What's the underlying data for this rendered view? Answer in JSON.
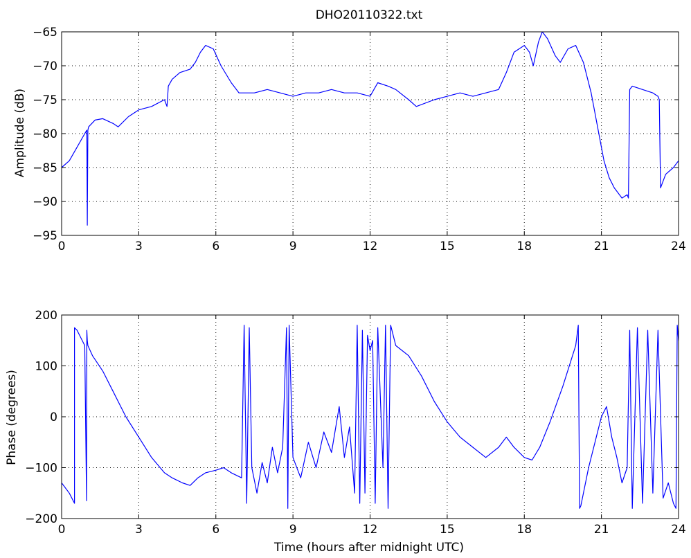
{
  "chart_data": [
    {
      "type": "line",
      "title": "DHO20110322.txt",
      "xlabel": "",
      "ylabel": "Amplitude (dB)",
      "xlim": [
        0,
        24
      ],
      "ylim": [
        -95,
        -65
      ],
      "xticks": [
        0,
        3,
        6,
        9,
        12,
        15,
        18,
        21,
        24
      ],
      "yticks": [
        -95,
        -90,
        -85,
        -80,
        -75,
        -70,
        -65
      ],
      "xtick_labels": [
        "0",
        "3",
        "6",
        "9",
        "12",
        "15",
        "18",
        "21",
        "24"
      ],
      "ytick_labels": [
        "−95",
        "−90",
        "−85",
        "−80",
        "−75",
        "−70",
        "−65"
      ],
      "grid": true,
      "color": "#0000ff",
      "series": [
        {
          "x": [
            0,
            0.3,
            0.6,
            0.9,
            0.98,
            1.0,
            1.02,
            1.05,
            1.3,
            1.6,
            2.0,
            2.2,
            2.6,
            3.0,
            3.5,
            4.0,
            4.1,
            4.15,
            4.3,
            4.6,
            5.0,
            5.2,
            5.4,
            5.6,
            5.9,
            6.2,
            6.6,
            6.9,
            7.5,
            8.0,
            8.5,
            9.0,
            9.5,
            10.0,
            10.5,
            11.0,
            11.5,
            12.0,
            12.3,
            12.7,
            13.0,
            13.5,
            13.8,
            14.5,
            15.0,
            15.5,
            16.0,
            16.5,
            17.0,
            17.3,
            17.6,
            18.0,
            18.2,
            18.35,
            18.55,
            18.7,
            18.9,
            19.2,
            19.4,
            19.7,
            20.0,
            20.3,
            20.6,
            20.9,
            21.1,
            21.3,
            21.5,
            21.8,
            22.0,
            22.05,
            22.1,
            22.2,
            22.6,
            23.0,
            23.2,
            23.25,
            23.3,
            23.5,
            23.8,
            24.0
          ],
          "y": [
            -85,
            -84,
            -82,
            -80,
            -79.5,
            -93.5,
            -79.5,
            -79,
            -78,
            -77.8,
            -78.5,
            -79,
            -77.5,
            -76.5,
            -76,
            -75,
            -76,
            -73,
            -72,
            -71,
            -70.5,
            -69.5,
            -68,
            -67,
            -67.5,
            -70,
            -72.5,
            -74,
            -74,
            -73.5,
            -74,
            -74.5,
            -74,
            -74,
            -73.5,
            -74,
            -74,
            -74.5,
            -72.5,
            -73,
            -73.5,
            -75,
            -76,
            -75,
            -74.5,
            -74,
            -74.5,
            -74,
            -73.5,
            -71,
            -68,
            -67,
            -68,
            -70,
            -66.5,
            -65,
            -66,
            -68.5,
            -69.5,
            -67.5,
            -67,
            -69.5,
            -74,
            -80,
            -84,
            -86.5,
            -88,
            -89.5,
            -89,
            -89.5,
            -73.5,
            -73,
            -73.5,
            -74,
            -74.5,
            -75,
            -88,
            -86,
            -85,
            -84
          ]
        }
      ]
    },
    {
      "type": "line",
      "title": "",
      "xlabel": "Time (hours after midnight UTC)",
      "ylabel": "Phase (degrees)",
      "xlim": [
        0,
        24
      ],
      "ylim": [
        -200,
        200
      ],
      "xticks": [
        0,
        3,
        6,
        9,
        12,
        15,
        18,
        21,
        24
      ],
      "yticks": [
        -200,
        -100,
        0,
        100,
        200
      ],
      "xtick_labels": [
        "0",
        "3",
        "6",
        "9",
        "12",
        "15",
        "18",
        "21",
        "24"
      ],
      "ytick_labels": [
        "−200",
        "−100",
        "0",
        "100",
        "200"
      ],
      "grid": true,
      "color": "#0000ff",
      "series": [
        {
          "x": [
            0,
            0.3,
            0.5,
            0.5,
            0.6,
            0.7,
            0.9,
            0.97,
            0.98,
            1.0,
            1.02,
            1.2,
            1.6,
            2.0,
            2.5,
            3.0,
            3.5,
            4.0,
            4.3,
            4.7,
            5.0,
            5.3,
            5.6,
            6.0,
            6.3,
            6.6,
            7.0,
            7.1,
            7.2,
            7.3,
            7.4,
            7.6,
            7.8,
            8.0,
            8.2,
            8.4,
            8.6,
            8.75,
            8.8,
            8.85,
            9.0,
            9.3,
            9.6,
            9.9,
            10.2,
            10.5,
            10.8,
            11.0,
            11.2,
            11.4,
            11.5,
            11.6,
            11.7,
            11.8,
            11.9,
            12.0,
            12.1,
            12.2,
            12.3,
            12.5,
            12.6,
            12.7,
            12.8,
            13.0,
            13.5,
            14.0,
            14.5,
            15.0,
            15.5,
            16.0,
            16.5,
            17.0,
            17.3,
            17.6,
            18.0,
            18.3,
            18.6,
            19.0,
            19.5,
            20.0,
            20.1,
            20.15,
            20.2,
            20.5,
            20.8,
            21.0,
            21.2,
            21.4,
            21.6,
            21.8,
            22.0,
            22.1,
            22.2,
            22.4,
            22.6,
            22.8,
            23.0,
            23.2,
            23.4,
            23.6,
            23.8,
            23.9,
            23.95,
            24.0
          ],
          "y": [
            -130,
            -150,
            -170,
            175,
            170,
            160,
            140,
            -165,
            170,
            150,
            140,
            120,
            90,
            50,
            0,
            -40,
            -80,
            -110,
            -120,
            -130,
            -135,
            -120,
            -110,
            -105,
            -100,
            -110,
            -120,
            180,
            -170,
            175,
            -100,
            -150,
            -90,
            -130,
            -60,
            -110,
            -60,
            175,
            -180,
            180,
            -80,
            -120,
            -50,
            -100,
            -30,
            -70,
            20,
            -80,
            -20,
            -150,
            180,
            -170,
            170,
            -150,
            160,
            130,
            150,
            -170,
            175,
            -100,
            180,
            -180,
            180,
            140,
            120,
            80,
            30,
            -10,
            -40,
            -60,
            -80,
            -60,
            -40,
            -60,
            -80,
            -85,
            -60,
            -10,
            60,
            140,
            180,
            -180,
            -175,
            -100,
            -40,
            0,
            20,
            -40,
            -80,
            -130,
            -100,
            170,
            -180,
            175,
            -170,
            170,
            -150,
            170,
            -160,
            -130,
            -170,
            -180,
            180,
            150
          ]
        }
      ]
    }
  ]
}
